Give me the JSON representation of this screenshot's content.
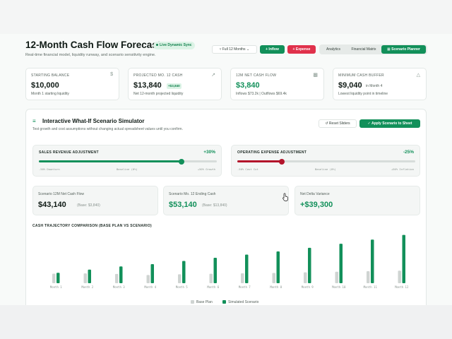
{
  "header": {
    "title": "12-Month Cash Flow Forecast",
    "live_badge": "Live Dynamic Sync",
    "subtitle": "Real-time financial model, liquidity runway, and scenario sensitivity engine.",
    "filter_label": "Full 12 Months",
    "inflow_label": "+ Inflow",
    "expense_label": "+ Expense",
    "tabs": [
      {
        "label": "Analytics",
        "active": false
      },
      {
        "label": "Financial Matrix",
        "active": false
      },
      {
        "label": "Scenario Planner",
        "active": true
      }
    ]
  },
  "kpis": [
    {
      "label": "STARTING BALANCE",
      "icon": "dollar-icon",
      "value": "$10,000",
      "delta": "",
      "inline": "",
      "sub": "Month 1 starting liquidity"
    },
    {
      "label": "PROJECTED MO. 12 CASH",
      "icon": "trend-up-icon",
      "value": "$13,840",
      "delta": "+$3,840",
      "inline": "",
      "sub": "Net 12-month projected liquidity"
    },
    {
      "label": "12M NET CASH FLOW",
      "icon": "bar-chart-icon",
      "value": "$3,840",
      "delta": "",
      "inline": "",
      "sub": "Inflows $73.2k | Outflows $69.4k"
    },
    {
      "label": "MINIMUM CASH BUFFER",
      "icon": "warning-icon",
      "value": "$9,040",
      "delta": "",
      "inline": "in Month 4",
      "sub": "Lowest liquidity point in timeline"
    }
  ],
  "simulator": {
    "title": "Interactive What-If Scenario Simulator",
    "subtitle": "Test growth and cost assumptions without changing actual spreadsheet values until you confirm.",
    "reset_label": "Reset Sliders",
    "apply_label": "Apply Scenario to Sheet",
    "sliders": [
      {
        "label": "SALES REVENUE ADJUSTMENT",
        "value_label": "+30%",
        "value": 30,
        "min": -50,
        "max": 50,
        "ticks": [
          "-50% Downturn",
          "Baseline (0%)",
          "+50% Growth"
        ],
        "color": "#12905a"
      },
      {
        "label": "OPERATING EXPENSE ADJUSTMENT",
        "value_label": "-25%",
        "value": -25,
        "min": -50,
        "max": 50,
        "ticks": [
          "-50% Cost Cut",
          "Baseline (0%)",
          "+50% Inflation"
        ],
        "color": "#b3142b"
      }
    ],
    "results": [
      {
        "label": "Scenario 12M Net Cash Flow",
        "value": "$43,140",
        "base": "(Base: $3,840)",
        "green": false
      },
      {
        "label": "Scenario Mo. 12 Ending Cash",
        "value": "$53,140",
        "base": "(Base: $13,840)",
        "green": true
      },
      {
        "label": "Net Delta Variance",
        "value": "+$39,300",
        "base": "",
        "green": true
      }
    ]
  },
  "chart_data": {
    "type": "bar",
    "title": "CASH TRAJECTORY COMPARISON (BASE PLAN VS SCENARIO)",
    "categories": [
      "Month 1",
      "Month 2",
      "Month 3",
      "Month 4",
      "Month 5",
      "Month 6",
      "Month 7",
      "Month 8",
      "Month 9",
      "Month 10",
      "Month 11",
      "Month 12"
    ],
    "series": [
      {
        "name": "Base Plan",
        "color": "#cfd4d2",
        "values": [
          10500,
          10800,
          10200,
          9040,
          9800,
          10400,
          10900,
          11300,
          12000,
          12600,
          13200,
          13840
        ]
      },
      {
        "name": "Simulated Scenario",
        "color": "#12905a",
        "values": [
          11500,
          15000,
          18500,
          21000,
          24500,
          28000,
          31500,
          35000,
          39000,
          43500,
          48000,
          53140
        ]
      }
    ],
    "ylim": [
      0,
      56000
    ],
    "grid": false,
    "legend_position": "bottom-center"
  }
}
